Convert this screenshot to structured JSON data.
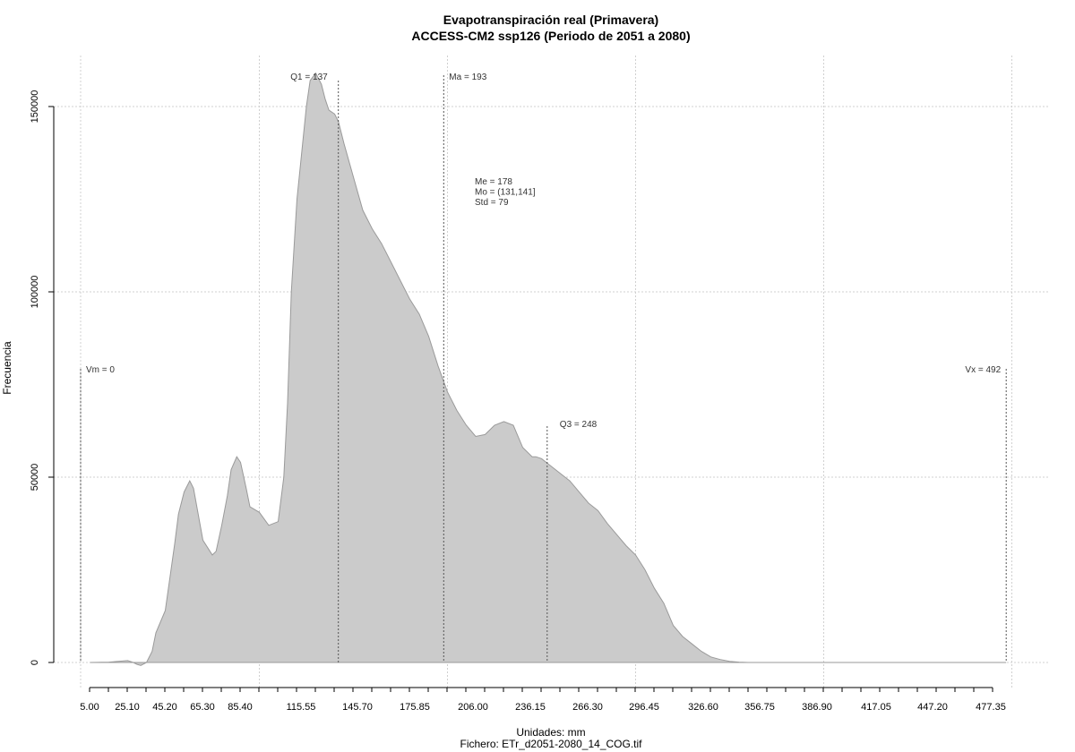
{
  "chart_data": {
    "type": "area",
    "title": "Evapotranspiración real (Primavera)",
    "subtitle": "ACCESS-CM2 ssp126 (Periodo de 2051 a 2080)",
    "xlabel": "Unidades: mm",
    "ylabel": "Frecuencia",
    "footer": "Fichero: ETr_d2051-2080_14_COG.tif",
    "xlim": [
      -10,
      512
    ],
    "ylim": [
      -6000,
      163000
    ],
    "x_ticks": [
      "5.00",
      "25.10",
      "45.20",
      "65.30",
      "85.40",
      "115.55",
      "145.70",
      "175.85",
      "206.00",
      "236.15",
      "266.30",
      "296.45",
      "326.60",
      "356.75",
      "386.90",
      "417.05",
      "447.20",
      "477.35"
    ],
    "y_ticks": [
      0,
      50000,
      100000,
      150000
    ],
    "y_tick_labels": [
      "0",
      "50000",
      "100000",
      "150000"
    ],
    "grid": true,
    "series": [
      {
        "x": [
          5,
          15,
          20,
          25,
          28,
          30,
          32,
          35,
          38,
          40,
          45,
          50,
          52,
          55,
          58,
          60,
          65,
          70,
          72,
          75,
          78,
          80,
          83,
          85,
          88,
          90,
          95,
          100,
          105,
          108,
          110,
          112,
          115,
          118,
          120,
          122,
          125,
          128,
          130,
          132,
          135,
          137,
          140,
          145,
          150,
          155,
          160,
          165,
          170,
          175,
          180,
          185,
          190,
          195,
          200,
          205,
          210,
          215,
          220,
          225,
          230,
          235,
          240,
          242,
          245,
          250,
          255,
          260,
          265,
          270,
          275,
          280,
          285,
          290,
          295,
          300,
          305,
          310,
          315,
          320,
          325,
          330,
          335,
          340,
          345,
          350,
          355,
          360,
          365,
          370,
          375,
          380,
          385,
          390,
          395,
          400,
          405,
          410,
          420,
          430,
          440,
          450,
          460,
          470,
          480,
          492
        ],
        "values": [
          0,
          100,
          300,
          500,
          0,
          -500,
          -800,
          0,
          3000,
          8000,
          14000,
          32000,
          40000,
          46000,
          49000,
          47000,
          33000,
          29000,
          30000,
          37000,
          45000,
          52000,
          55500,
          54000,
          47000,
          42000,
          40500,
          37000,
          38000,
          50000,
          70000,
          100000,
          125000,
          140000,
          150000,
          157000,
          159000,
          156000,
          152000,
          149000,
          148000,
          146000,
          140000,
          131000,
          122000,
          117000,
          113000,
          108000,
          103000,
          98000,
          94000,
          88000,
          80000,
          73000,
          68000,
          64000,
          61000,
          61500,
          64000,
          65000,
          64000,
          58000,
          55500,
          55500,
          55000,
          53000,
          51000,
          49000,
          46000,
          43000,
          41000,
          37500,
          34500,
          31500,
          29000,
          25000,
          20000,
          16000,
          10000,
          7000,
          5000,
          3000,
          1500,
          800,
          300,
          100,
          0,
          0,
          0,
          0,
          0,
          0,
          0,
          0,
          0,
          0,
          0,
          0,
          0,
          0,
          0,
          0,
          0,
          0,
          0,
          0
        ],
        "color": "#cbcbcb"
      }
    ],
    "annotations": [
      {
        "label": "Vm = 0",
        "x": 0
      },
      {
        "label": "Q1 = 137",
        "x": 137
      },
      {
        "label": "Ma = 193",
        "x": 193
      },
      {
        "label": "Q3 = 248",
        "x": 248
      },
      {
        "label": "Vx = 492",
        "x": 492
      }
    ],
    "stats": [
      "Me = 178",
      "Mo = (131,141]",
      "Std = 79"
    ]
  }
}
